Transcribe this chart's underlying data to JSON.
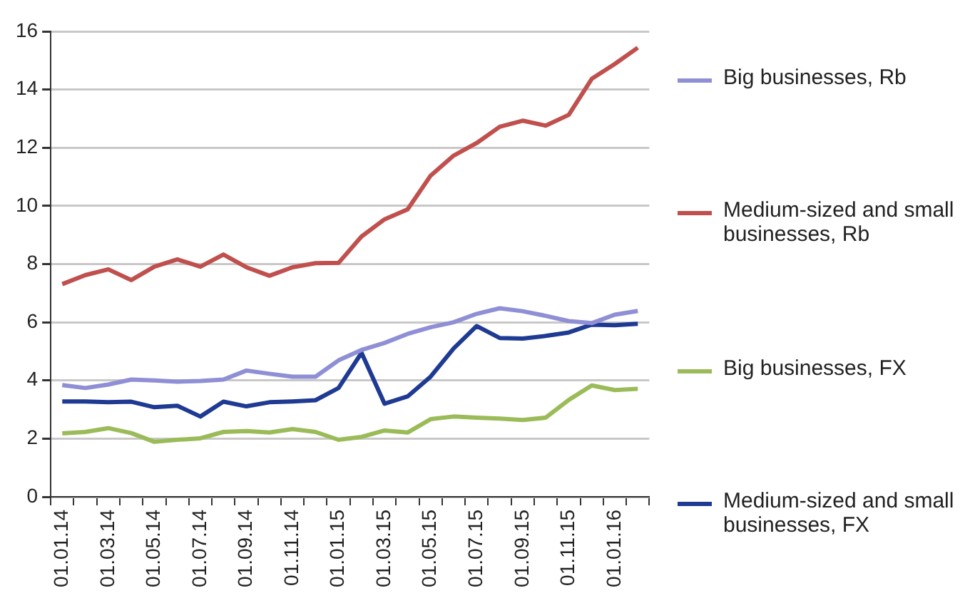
{
  "chart_data": {
    "type": "line",
    "categories": [
      "01.01.14",
      null,
      "01.03.14",
      null,
      "01.05.14",
      null,
      "01.07.14",
      null,
      "01.09.14",
      null,
      "01.11.14",
      null,
      "01.01.15",
      null,
      "01.03.15",
      null,
      "01.05.15",
      null,
      "01.07.15",
      null,
      "01.09.15",
      null,
      "01.11.15",
      null,
      "01.01.16",
      null
    ],
    "series": [
      {
        "name": "Big businesses, Rb",
        "color": "#8f8fd6",
        "values": [
          3.84,
          3.74,
          3.86,
          4.03,
          4.0,
          3.96,
          3.98,
          4.03,
          4.34,
          4.23,
          4.13,
          4.13,
          4.69,
          5.05,
          5.29,
          5.6,
          5.83,
          6.0,
          6.29,
          6.48,
          6.38,
          6.22,
          6.04,
          5.97,
          6.26,
          6.39
        ]
      },
      {
        "name": "Medium-sized and small businesses, Rb",
        "color": "#c0504d",
        "values": [
          7.31,
          7.62,
          7.82,
          7.45,
          7.91,
          8.16,
          7.91,
          8.33,
          7.89,
          7.6,
          7.89,
          8.03,
          8.04,
          8.95,
          9.54,
          9.88,
          11.04,
          11.73,
          12.16,
          12.72,
          12.93,
          12.76,
          13.13,
          14.37,
          14.88,
          15.44
        ]
      },
      {
        "name": "Big businesses, FX",
        "color": "#9bbb59",
        "values": [
          2.18,
          2.23,
          2.36,
          2.19,
          1.89,
          1.96,
          2.01,
          2.23,
          2.26,
          2.21,
          2.33,
          2.23,
          1.96,
          2.06,
          2.28,
          2.21,
          2.67,
          2.76,
          2.72,
          2.69,
          2.64,
          2.72,
          3.33,
          3.83,
          3.67,
          3.71
        ]
      },
      {
        "name": "Medium-sized and small businesses, FX",
        "color": "#1f3a93",
        "values": [
          3.28,
          3.28,
          3.25,
          3.27,
          3.08,
          3.13,
          2.76,
          3.27,
          3.11,
          3.25,
          3.28,
          3.32,
          3.74,
          4.95,
          3.2,
          3.45,
          4.13,
          5.1,
          5.87,
          5.46,
          5.44,
          5.53,
          5.65,
          5.92,
          5.9,
          5.95
        ]
      }
    ],
    "ylim": [
      0,
      16
    ],
    "yticks": [
      0,
      2,
      4,
      6,
      8,
      10,
      12,
      14,
      16
    ],
    "grid": "y",
    "legend": "right",
    "marker": "none",
    "line_style": "solid"
  }
}
